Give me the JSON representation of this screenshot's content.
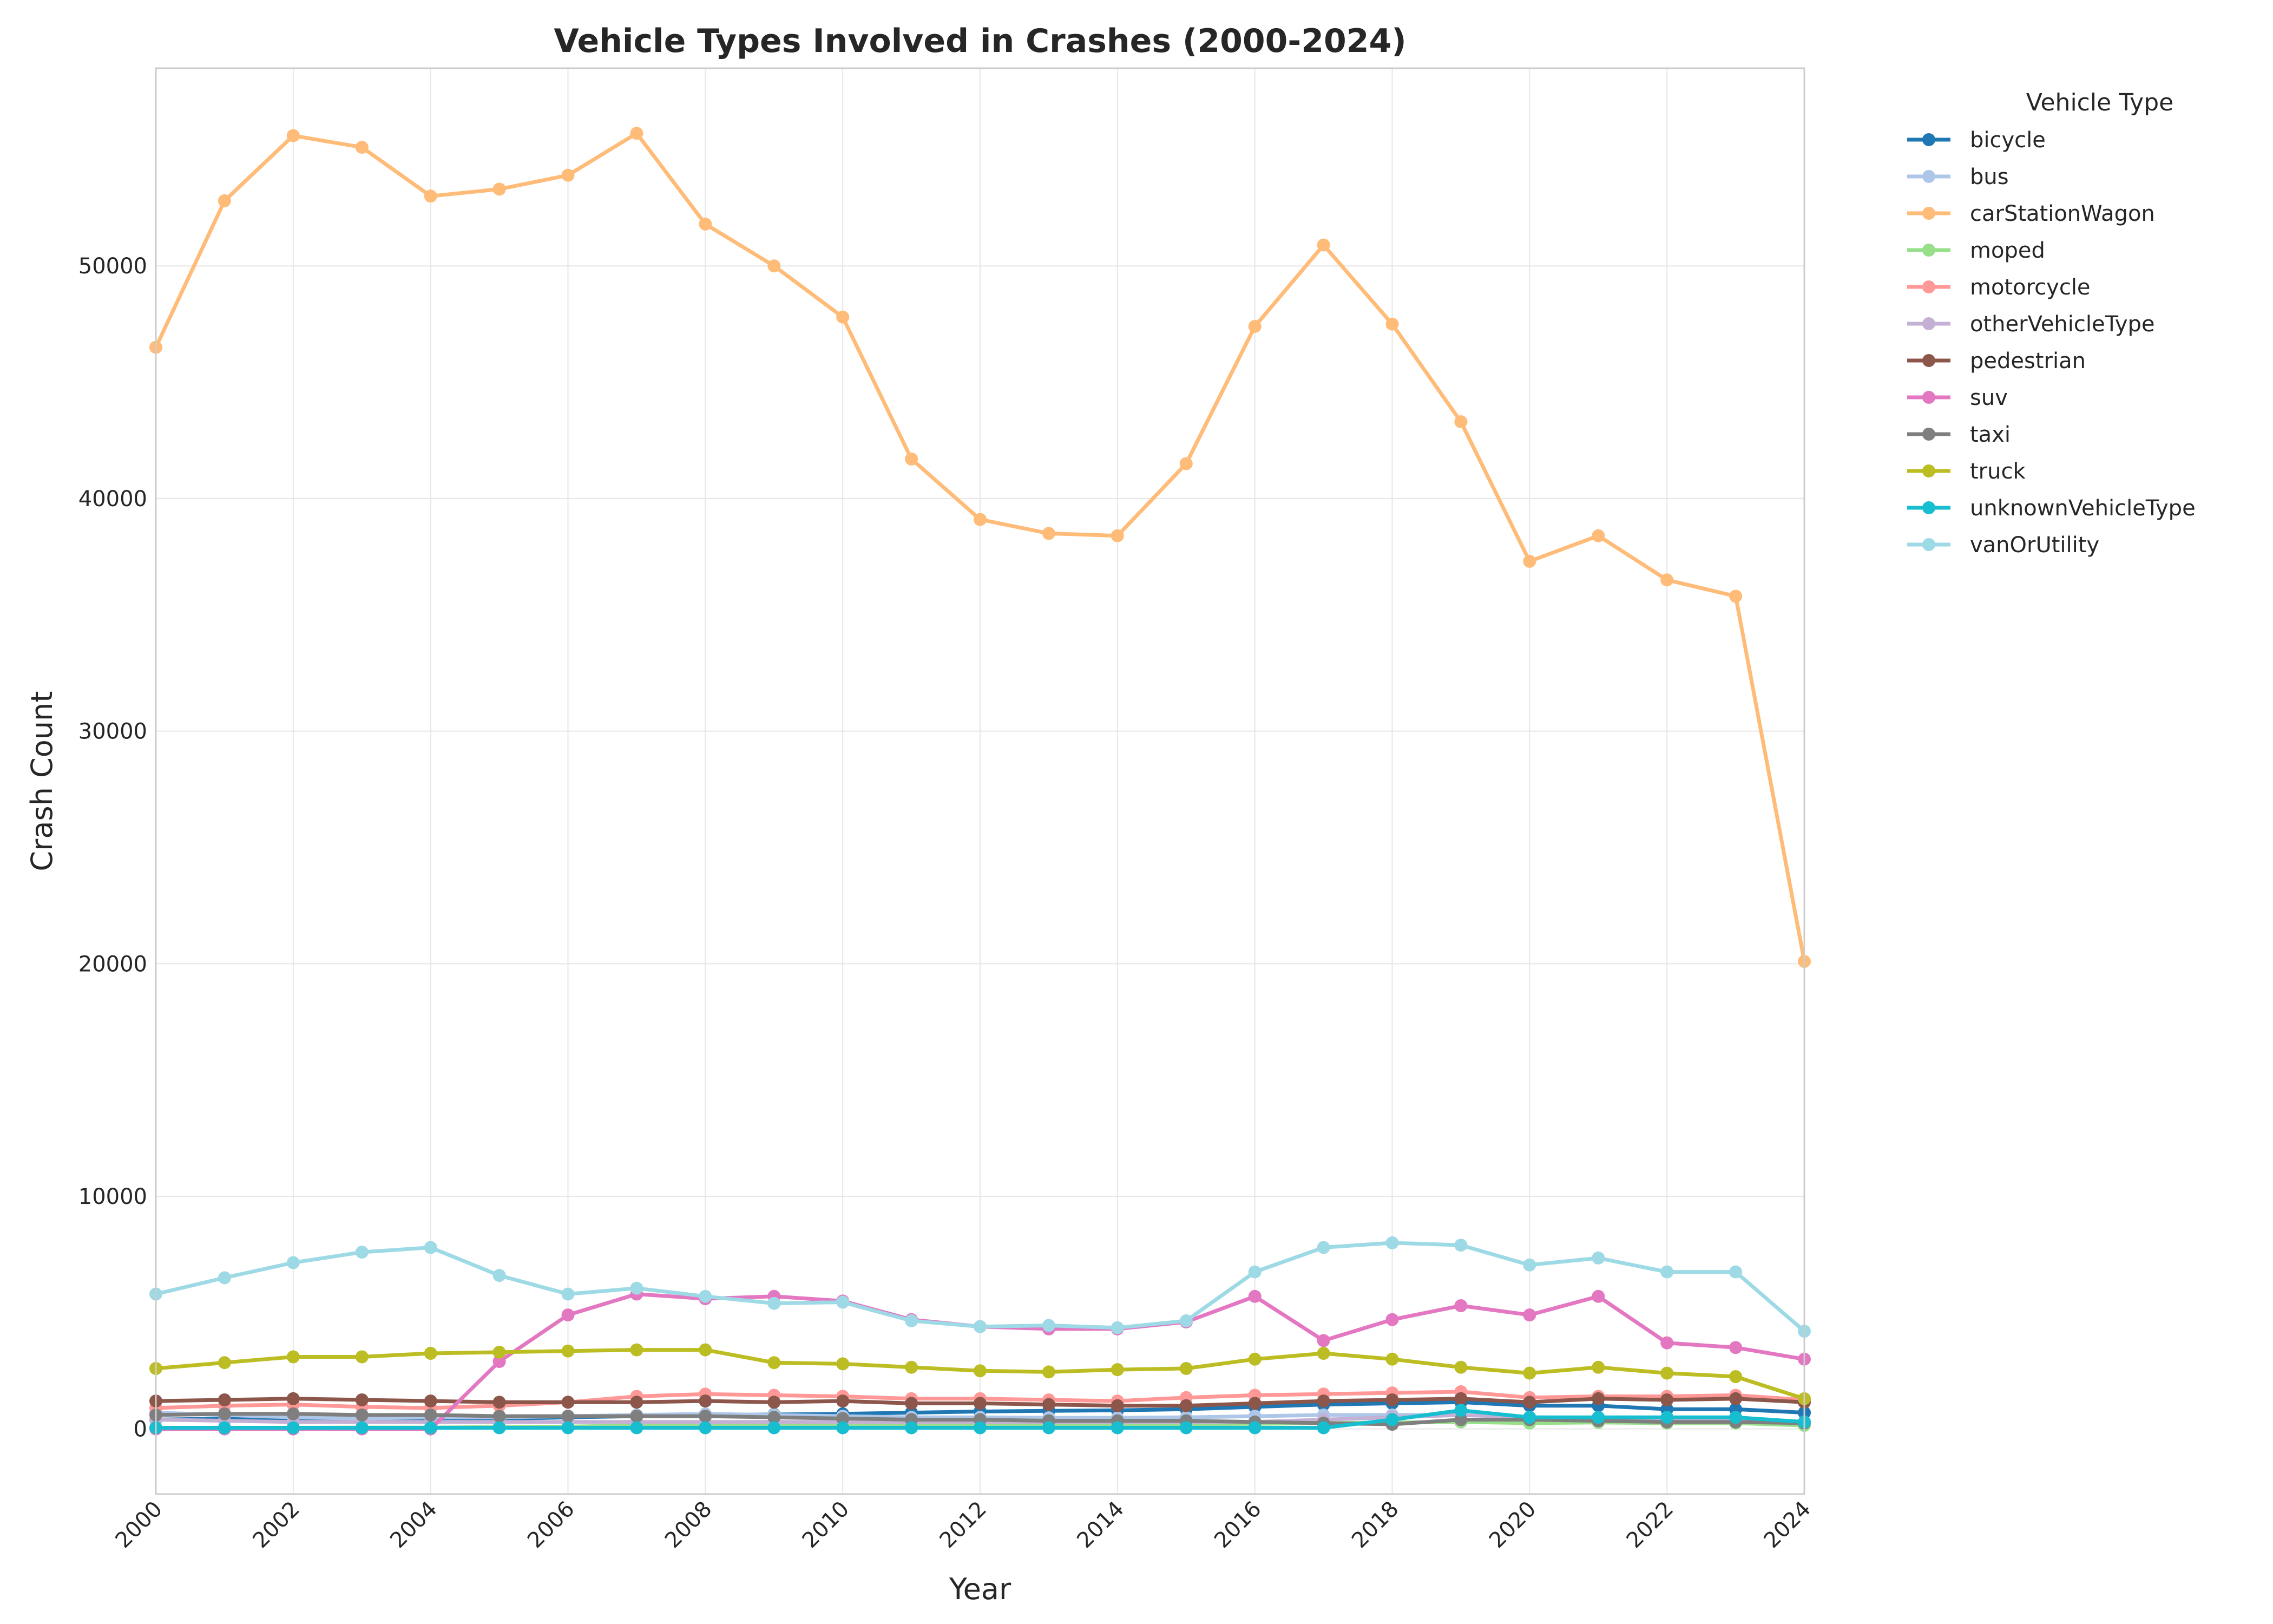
{
  "chart_data": {
    "type": "line",
    "title": "Vehicle Types Involved in Crashes (2000-2024)",
    "xlabel": "Year",
    "ylabel": "Crash Count",
    "xlim": [
      2000,
      2024
    ],
    "ylim": [
      -2800,
      58500
    ],
    "x_ticks": [
      "2000",
      "2002",
      "2004",
      "2006",
      "2008",
      "2010",
      "2012",
      "2014",
      "2016",
      "2018",
      "2020",
      "2022",
      "2024"
    ],
    "y_ticks": [
      "0",
      "10000",
      "20000",
      "30000",
      "40000",
      "50000"
    ],
    "grid": true,
    "legend_title": "Vehicle Type",
    "legend_position": "outside-right",
    "x": [
      2000,
      2001,
      2002,
      2003,
      2004,
      2005,
      2006,
      2007,
      2008,
      2009,
      2010,
      2011,
      2012,
      2013,
      2014,
      2015,
      2016,
      2017,
      2018,
      2019,
      2020,
      2021,
      2022,
      2023,
      2024
    ],
    "series": [
      {
        "name": "bicycle",
        "color": "#1f77b4",
        "values": [
          400,
          450,
          450,
          430,
          420,
          430,
          500,
          550,
          600,
          620,
          650,
          700,
          750,
          780,
          800,
          850,
          950,
          1050,
          1100,
          1150,
          1000,
          1000,
          850,
          850,
          700
        ]
      },
      {
        "name": "bus",
        "color": "#aec7e8",
        "values": [
          700,
          600,
          500,
          450,
          500,
          500,
          550,
          600,
          650,
          600,
          550,
          500,
          500,
          480,
          480,
          500,
          550,
          600,
          600,
          600,
          500,
          480,
          450,
          450,
          300
        ]
      },
      {
        "name": "carStationWagon",
        "color": "#ffbb78",
        "values": [
          46500,
          52800,
          55600,
          55100,
          53000,
          53300,
          53900,
          55700,
          51800,
          50000,
          47800,
          41700,
          39100,
          38500,
          38400,
          41500,
          47400,
          50900,
          47500,
          43300,
          37300,
          38400,
          36500,
          35800,
          20100
        ]
      },
      {
        "name": "moped",
        "color": "#98df8a",
        "values": [
          50,
          50,
          50,
          60,
          60,
          80,
          100,
          150,
          200,
          200,
          200,
          200,
          200,
          200,
          200,
          200,
          220,
          250,
          280,
          300,
          250,
          280,
          250,
          250,
          150
        ]
      },
      {
        "name": "motorcycle",
        "color": "#ff9896",
        "values": [
          900,
          1000,
          1050,
          950,
          900,
          1000,
          1150,
          1400,
          1500,
          1450,
          1400,
          1300,
          1300,
          1250,
          1200,
          1350,
          1450,
          1500,
          1550,
          1600,
          1350,
          1400,
          1400,
          1450,
          1250
        ]
      },
      {
        "name": "otherVehicleType",
        "color": "#c5b0d5",
        "values": [
          400,
          350,
          300,
          300,
          300,
          300,
          300,
          300,
          300,
          300,
          300,
          300,
          300,
          300,
          300,
          300,
          300,
          400,
          500,
          600,
          500,
          450,
          400,
          400,
          300
        ]
      },
      {
        "name": "pedestrian",
        "color": "#8c564b",
        "values": [
          1200,
          1250,
          1300,
          1250,
          1200,
          1150,
          1150,
          1150,
          1200,
          1150,
          1200,
          1100,
          1100,
          1050,
          1000,
          1000,
          1100,
          1200,
          1250,
          1300,
          1150,
          1300,
          1250,
          1300,
          1150
        ]
      },
      {
        "name": "suv",
        "color": "#e377c2",
        "values": [
          0,
          0,
          0,
          0,
          0,
          2900,
          4900,
          5800,
          5600,
          5700,
          5500,
          4700,
          4400,
          4300,
          4300,
          4600,
          5700,
          3800,
          4700,
          5300,
          4900,
          5700,
          3700,
          3500,
          3000
        ]
      },
      {
        "name": "taxi",
        "color": "#7f7f7f",
        "values": [
          600,
          650,
          650,
          600,
          600,
          550,
          550,
          550,
          550,
          500,
          450,
          400,
          400,
          350,
          350,
          350,
          300,
          250,
          200,
          400,
          400,
          350,
          300,
          300,
          250
        ]
      },
      {
        "name": "truck",
        "color": "#bcbd22",
        "values": [
          2600,
          2850,
          3100,
          3100,
          3250,
          3300,
          3350,
          3400,
          3400,
          2850,
          2800,
          2650,
          2500,
          2450,
          2550,
          2600,
          3000,
          3250,
          3000,
          2650,
          2400,
          2650,
          2400,
          2250,
          1300
        ]
      },
      {
        "name": "unknownVehicleType",
        "color": "#17becf",
        "values": [
          50,
          50,
          50,
          50,
          50,
          50,
          50,
          50,
          50,
          50,
          50,
          50,
          50,
          50,
          50,
          50,
          50,
          50,
          400,
          800,
          500,
          500,
          500,
          500,
          300
        ]
      },
      {
        "name": "vanOrUtility",
        "color": "#9edae5",
        "values": [
          5800,
          6500,
          7150,
          7600,
          7800,
          6600,
          5800,
          6050,
          5700,
          5400,
          5450,
          4650,
          4400,
          4450,
          4350,
          4650,
          6750,
          7800,
          8000,
          7900,
          7050,
          7350,
          6750,
          6750,
          4200
        ]
      }
    ]
  }
}
